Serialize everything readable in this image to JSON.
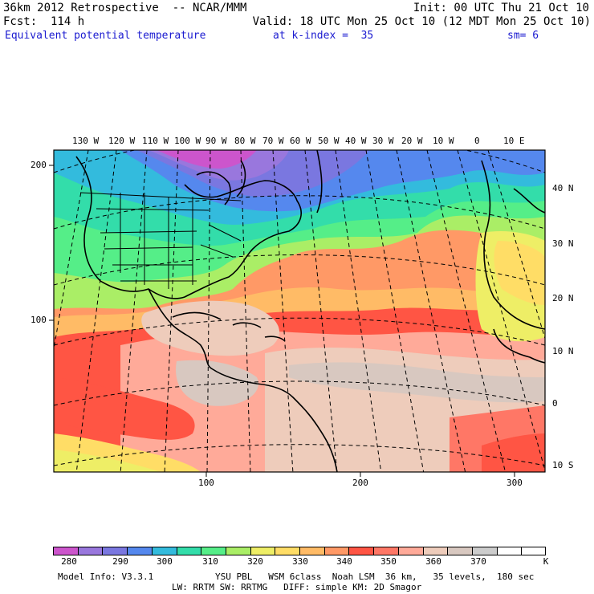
{
  "header": {
    "line1_left": "36km 2012 Retrospective  -- NCAR/MMM",
    "line1_right": "Init: 00 UTC Thu 21 Oct 10",
    "line2_left": "Fcst:  114 h",
    "line2_right": "Valid: 18 UTC Mon 25 Oct 10 (12 MDT Mon 25 Oct 10)",
    "line3_field": "Equivalent potential temperature",
    "line3_kindex": "at k-index =  35",
    "line3_sm": "sm= 6"
  },
  "map": {
    "top_lon_labels": [
      "130 W",
      "120 W",
      "110 W",
      "100 W",
      "90 W",
      "80 W",
      "70 W",
      "60 W",
      "50 W",
      "40 W",
      "30 W",
      "20 W",
      "10 W",
      "0",
      "10 E"
    ],
    "right_lat_labels": [
      "40 N",
      "30 N",
      "20 N",
      "10 N",
      "0",
      "10 S"
    ],
    "left_grid_labels": [
      "200",
      "100"
    ],
    "bottom_grid_labels": [
      "100",
      "200",
      "300"
    ],
    "colors": {
      "c280": "#cc55cc",
      "c285": "#9977dd",
      "c290": "#7a77e0",
      "c295": "#5588ee",
      "c300": "#33bbdd",
      "c305": "#33ddaa",
      "c310": "#55ee88",
      "c315": "#aaee66",
      "c320": "#eeee66",
      "c325": "#ffdd66",
      "c330": "#ffbb66",
      "c335": "#ff9966",
      "c340": "#ff5544",
      "c345": "#ff7766",
      "c350": "#ffaa99",
      "c355": "#eeccbb",
      "c360": "#d8c8c0",
      "c365": "#cccccc",
      "c370": "#ffffff"
    }
  },
  "colorbar": {
    "labels": [
      "280",
      "290",
      "300",
      "310",
      "320",
      "330",
      "340",
      "350",
      "360",
      "370"
    ],
    "unit": "K",
    "colors": [
      "#cc55cc",
      "#9977dd",
      "#7a77e0",
      "#5588ee",
      "#33bbdd",
      "#33ddaa",
      "#55ee88",
      "#aaee66",
      "#eeee66",
      "#ffdd66",
      "#ffbb66",
      "#ff9966",
      "#ff5544",
      "#ff7766",
      "#ffaa99",
      "#eeccbb",
      "#d8c8c0",
      "#cccccc",
      "#ffffff",
      "#ffffff"
    ]
  },
  "footer": {
    "model_info": "Model Info: V3.3.1",
    "physics1": "YSU PBL   WSM 6class  Noah LSM  36 km,   35 levels,  180 sec",
    "physics2": "LW: RRTM SW: RRTMG   DIFF: simple KM: 2D Smagor"
  }
}
